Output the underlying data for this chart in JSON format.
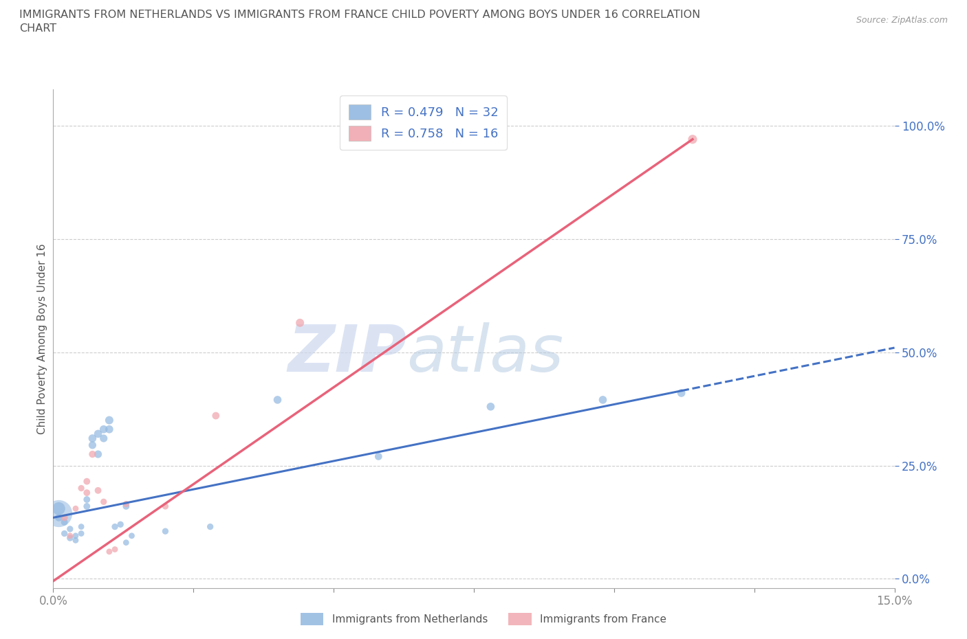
{
  "title_line1": "IMMIGRANTS FROM NETHERLANDS VS IMMIGRANTS FROM FRANCE CHILD POVERTY AMONG BOYS UNDER 16 CORRELATION",
  "title_line2": "CHART",
  "source_text": "Source: ZipAtlas.com",
  "ylabel": "Child Poverty Among Boys Under 16",
  "xlim": [
    0.0,
    0.15
  ],
  "ylim": [
    -0.02,
    1.08
  ],
  "ytick_values": [
    0.0,
    0.25,
    0.5,
    0.75,
    1.0
  ],
  "xtick_values": [
    0.0,
    0.025,
    0.05,
    0.075,
    0.1,
    0.125,
    0.15
  ],
  "legend1_label": "R = 0.479   N = 32",
  "legend2_label": "R = 0.758   N = 16",
  "legend_bottom_label1": "Immigrants from Netherlands",
  "legend_bottom_label2": "Immigrants from France",
  "watermark_zip": "ZIP",
  "watermark_atlas": "atlas",
  "nl_color": "#92b8e0",
  "fr_color": "#f0a8b0",
  "nl_line_color": "#4472c4",
  "fr_line_color": "#e8637a",
  "text_color": "#4472c4",
  "nl_scatter": [
    [
      0.001,
      0.155
    ],
    [
      0.001,
      0.135
    ],
    [
      0.002,
      0.125
    ],
    [
      0.002,
      0.1
    ],
    [
      0.003,
      0.11
    ],
    [
      0.003,
      0.09
    ],
    [
      0.004,
      0.085
    ],
    [
      0.004,
      0.095
    ],
    [
      0.005,
      0.1
    ],
    [
      0.005,
      0.115
    ],
    [
      0.006,
      0.16
    ],
    [
      0.006,
      0.175
    ],
    [
      0.007,
      0.31
    ],
    [
      0.007,
      0.295
    ],
    [
      0.008,
      0.32
    ],
    [
      0.008,
      0.275
    ],
    [
      0.009,
      0.33
    ],
    [
      0.009,
      0.31
    ],
    [
      0.01,
      0.35
    ],
    [
      0.01,
      0.33
    ],
    [
      0.011,
      0.115
    ],
    [
      0.012,
      0.12
    ],
    [
      0.013,
      0.08
    ],
    [
      0.013,
      0.16
    ],
    [
      0.014,
      0.095
    ],
    [
      0.02,
      0.105
    ],
    [
      0.028,
      0.115
    ],
    [
      0.04,
      0.395
    ],
    [
      0.058,
      0.27
    ],
    [
      0.078,
      0.38
    ],
    [
      0.098,
      0.395
    ],
    [
      0.112,
      0.41
    ]
  ],
  "nl_sizes": [
    180,
    60,
    50,
    45,
    45,
    45,
    40,
    40,
    40,
    40,
    50,
    50,
    70,
    65,
    70,
    65,
    70,
    65,
    75,
    70,
    45,
    45,
    40,
    50,
    40,
    45,
    45,
    70,
    60,
    70,
    70,
    70
  ],
  "fr_scatter": [
    [
      0.002,
      0.135
    ],
    [
      0.003,
      0.095
    ],
    [
      0.004,
      0.155
    ],
    [
      0.005,
      0.2
    ],
    [
      0.006,
      0.19
    ],
    [
      0.006,
      0.215
    ],
    [
      0.007,
      0.275
    ],
    [
      0.008,
      0.195
    ],
    [
      0.009,
      0.17
    ],
    [
      0.01,
      0.06
    ],
    [
      0.011,
      0.065
    ],
    [
      0.013,
      0.165
    ],
    [
      0.02,
      0.16
    ],
    [
      0.029,
      0.36
    ],
    [
      0.044,
      0.565
    ],
    [
      0.114,
      0.97
    ]
  ],
  "fr_sizes": [
    50,
    40,
    40,
    45,
    50,
    50,
    55,
    50,
    45,
    40,
    40,
    45,
    45,
    60,
    75,
    90
  ],
  "nl_trendline_solid": [
    [
      0.0,
      0.135
    ],
    [
      0.112,
      0.415
    ]
  ],
  "nl_trendline_dashed": [
    [
      0.112,
      0.415
    ],
    [
      0.15,
      0.51
    ]
  ],
  "fr_trendline": [
    [
      0.0,
      -0.005
    ],
    [
      0.114,
      0.97
    ]
  ],
  "big_nl_point": [
    0.001,
    0.145
  ],
  "big_nl_size": 800
}
